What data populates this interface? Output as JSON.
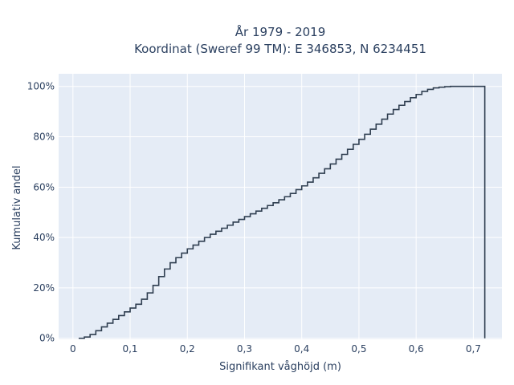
{
  "chart_data": {
    "type": "line",
    "line_shape": "step (empirical cumulative distribution)",
    "title_line1": "År 1979 - 2019",
    "title_line2": "Koordinat (Sweref 99 TM): E 346853, N 6234451",
    "xlabel": "Signifikant våghöjd (m)",
    "ylabel": "Kumulativ andel",
    "xlim": [
      -0.025,
      0.75
    ],
    "ylim": [
      -0.004,
      1.05
    ],
    "xticks": [
      0,
      0.1,
      0.2,
      0.3,
      0.4,
      0.5,
      0.6,
      0.7
    ],
    "xtick_labels": [
      "0",
      "0,1",
      "0,2",
      "0,3",
      "0,4",
      "0,5",
      "0,6",
      "0,7"
    ],
    "yticks": [
      0,
      0.2,
      0.4,
      0.6,
      0.8,
      1.0
    ],
    "ytick_labels": [
      "0%",
      "20%",
      "40%",
      "60%",
      "80%",
      "100%"
    ],
    "grid": true,
    "background_color": "#e5ecf6",
    "grid_color": "#ffffff",
    "line_color": "#2f3e50",
    "series": [
      {
        "x": [
          0.01,
          0.02,
          0.03,
          0.04,
          0.05,
          0.06,
          0.07,
          0.08,
          0.09,
          0.1,
          0.11,
          0.12,
          0.13,
          0.14,
          0.15,
          0.16,
          0.17,
          0.18,
          0.19,
          0.2,
          0.21,
          0.22,
          0.23,
          0.24,
          0.25,
          0.26,
          0.27,
          0.28,
          0.29,
          0.3,
          0.31,
          0.32,
          0.33,
          0.34,
          0.35,
          0.36,
          0.37,
          0.38,
          0.39,
          0.4,
          0.41,
          0.42,
          0.43,
          0.44,
          0.45,
          0.46,
          0.47,
          0.48,
          0.49,
          0.5,
          0.51,
          0.52,
          0.53,
          0.54,
          0.55,
          0.56,
          0.57,
          0.58,
          0.59,
          0.6,
          0.61,
          0.62,
          0.63,
          0.64,
          0.65,
          0.66,
          0.67,
          0.68,
          0.69,
          0.7,
          0.71,
          0.72
        ],
        "y": [
          0.0,
          0.005,
          0.015,
          0.03,
          0.045,
          0.06,
          0.075,
          0.09,
          0.105,
          0.12,
          0.135,
          0.155,
          0.18,
          0.21,
          0.245,
          0.275,
          0.3,
          0.32,
          0.338,
          0.355,
          0.37,
          0.385,
          0.4,
          0.413,
          0.425,
          0.437,
          0.449,
          0.461,
          0.472,
          0.483,
          0.494,
          0.505,
          0.516,
          0.527,
          0.538,
          0.55,
          0.562,
          0.575,
          0.59,
          0.605,
          0.62,
          0.637,
          0.655,
          0.673,
          0.692,
          0.711,
          0.73,
          0.75,
          0.77,
          0.79,
          0.81,
          0.83,
          0.85,
          0.87,
          0.89,
          0.908,
          0.925,
          0.94,
          0.955,
          0.968,
          0.98,
          0.988,
          0.994,
          0.997,
          0.999,
          1.0,
          1.0,
          1.0,
          1.0,
          1.0,
          1.0,
          1.0
        ]
      }
    ]
  }
}
